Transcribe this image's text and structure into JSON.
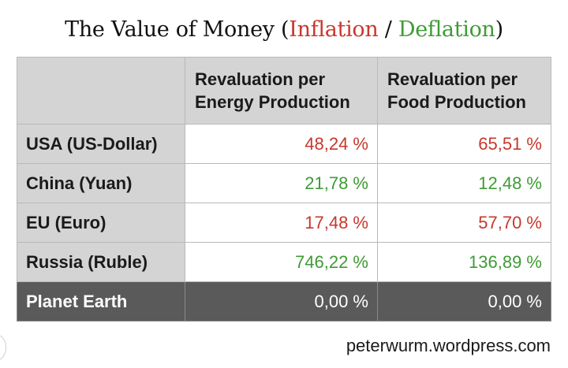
{
  "title": {
    "prefix": "The Value of Money (",
    "inflation": "Inflation",
    "separator": " / ",
    "deflation": "Deflation",
    "suffix": ")"
  },
  "colors": {
    "inflation": "#c8372d",
    "deflation": "#3f9b35",
    "header_bg": "#d4d4d4",
    "total_row_bg": "#5a5a5a"
  },
  "chart_data": {
    "type": "table",
    "columns": [
      "",
      "Revaluation per Energy Production",
      "Revaluation per Food Production"
    ],
    "column_lines": [
      [
        "Revaluation per",
        "Energy Production"
      ],
      [
        "Revaluation per",
        "Food Production"
      ]
    ],
    "rows": [
      {
        "label": "USA (US-Dollar)",
        "values": [
          "48,24 %",
          "65,51 %"
        ],
        "status": [
          "inflation",
          "inflation"
        ]
      },
      {
        "label": "China (Yuan)",
        "values": [
          "21,78 %",
          "12,48 %"
        ],
        "status": [
          "deflation",
          "deflation"
        ]
      },
      {
        "label": "EU (Euro)",
        "values": [
          "17,48 %",
          "57,70 %"
        ],
        "status": [
          "inflation",
          "inflation"
        ]
      },
      {
        "label": "Russia (Ruble)",
        "values": [
          "746,22 %",
          "136,89 %"
        ],
        "status": [
          "deflation",
          "deflation"
        ]
      },
      {
        "label": "Planet Earth",
        "values": [
          "0,00 %",
          "0,00 %"
        ],
        "status": [
          "neutral",
          "neutral"
        ]
      }
    ]
  },
  "footer": {
    "credit": "peterwurm.wordpress.com"
  }
}
